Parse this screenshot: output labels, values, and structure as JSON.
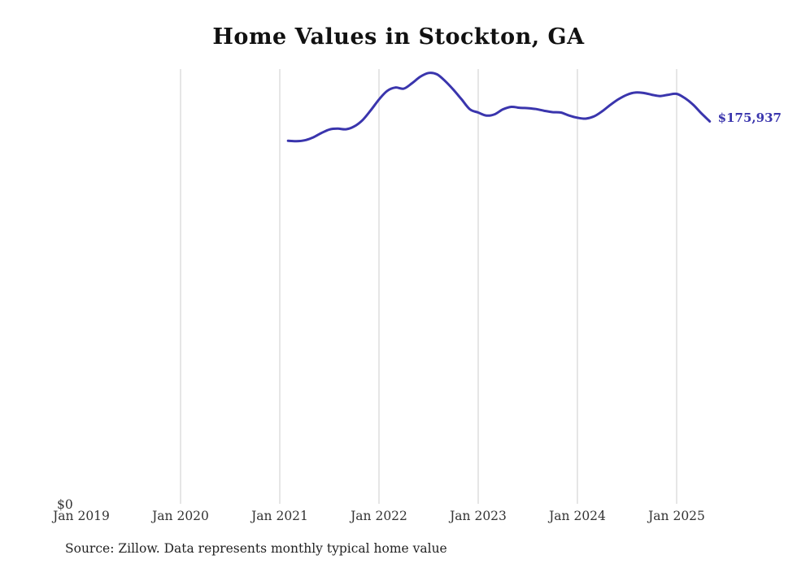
{
  "chart_data": {
    "type": "line",
    "title": "Home Values in Stockton, GA",
    "source": "Source: Zillow. Data represents monthly typical home value",
    "y_zero_label": "$0",
    "end_label": "$175,937",
    "end_value": 175937,
    "line_color": "#3a35ad",
    "grid_color": "#cccccc",
    "ylim": [
      0,
      200000
    ],
    "legend": "none",
    "x_ticks": [
      {
        "label": "Jan 2019",
        "grid": false
      },
      {
        "label": "Jan 2020",
        "grid": true
      },
      {
        "label": "Jan 2021",
        "grid": true
      },
      {
        "label": "Jan 2022",
        "grid": true
      },
      {
        "label": "Jan 2023",
        "grid": true
      },
      {
        "label": "Jan 2024",
        "grid": true
      },
      {
        "label": "Jan 2025",
        "grid": true
      }
    ],
    "start_offset_months": 1,
    "x": [
      "Feb 2021",
      "Mar 2021",
      "Apr 2021",
      "May 2021",
      "Jun 2021",
      "Jul 2021",
      "Aug 2021",
      "Sep 2021",
      "Oct 2021",
      "Nov 2021",
      "Dec 2021",
      "Jan 2022",
      "Feb 2022",
      "Mar 2022",
      "Apr 2022",
      "May 2022",
      "Jun 2022",
      "Jul 2022",
      "Aug 2022",
      "Sep 2022",
      "Oct 2022",
      "Nov 2022",
      "Dec 2022",
      "Jan 2023",
      "Feb 2023",
      "Mar 2023",
      "Apr 2023",
      "May 2023",
      "Jun 2023",
      "Jul 2023",
      "Aug 2023",
      "Sep 2023",
      "Oct 2023",
      "Nov 2023",
      "Dec 2023",
      "Jan 2024",
      "Feb 2024",
      "Mar 2024",
      "Apr 2024",
      "May 2024",
      "Jun 2024",
      "Jul 2024",
      "Aug 2024",
      "Sep 2024",
      "Oct 2024",
      "Nov 2024",
      "Dec 2024",
      "Jan 2025",
      "Feb 2025",
      "Mar 2025",
      "Apr 2025",
      "May 2025"
    ],
    "values": [
      167000,
      166800,
      167200,
      168500,
      170500,
      172200,
      172600,
      172300,
      173600,
      176500,
      181000,
      186000,
      190000,
      191500,
      191000,
      193500,
      196500,
      198200,
      197600,
      194500,
      190500,
      186000,
      181500,
      180000,
      178600,
      179200,
      181500,
      182600,
      182200,
      182000,
      181600,
      180800,
      180200,
      180000,
      178600,
      177600,
      177200,
      178200,
      180600,
      183600,
      186200,
      188200,
      189200,
      189000,
      188200,
      187600,
      188200,
      188600,
      186600,
      183600,
      179600,
      175937
    ]
  }
}
